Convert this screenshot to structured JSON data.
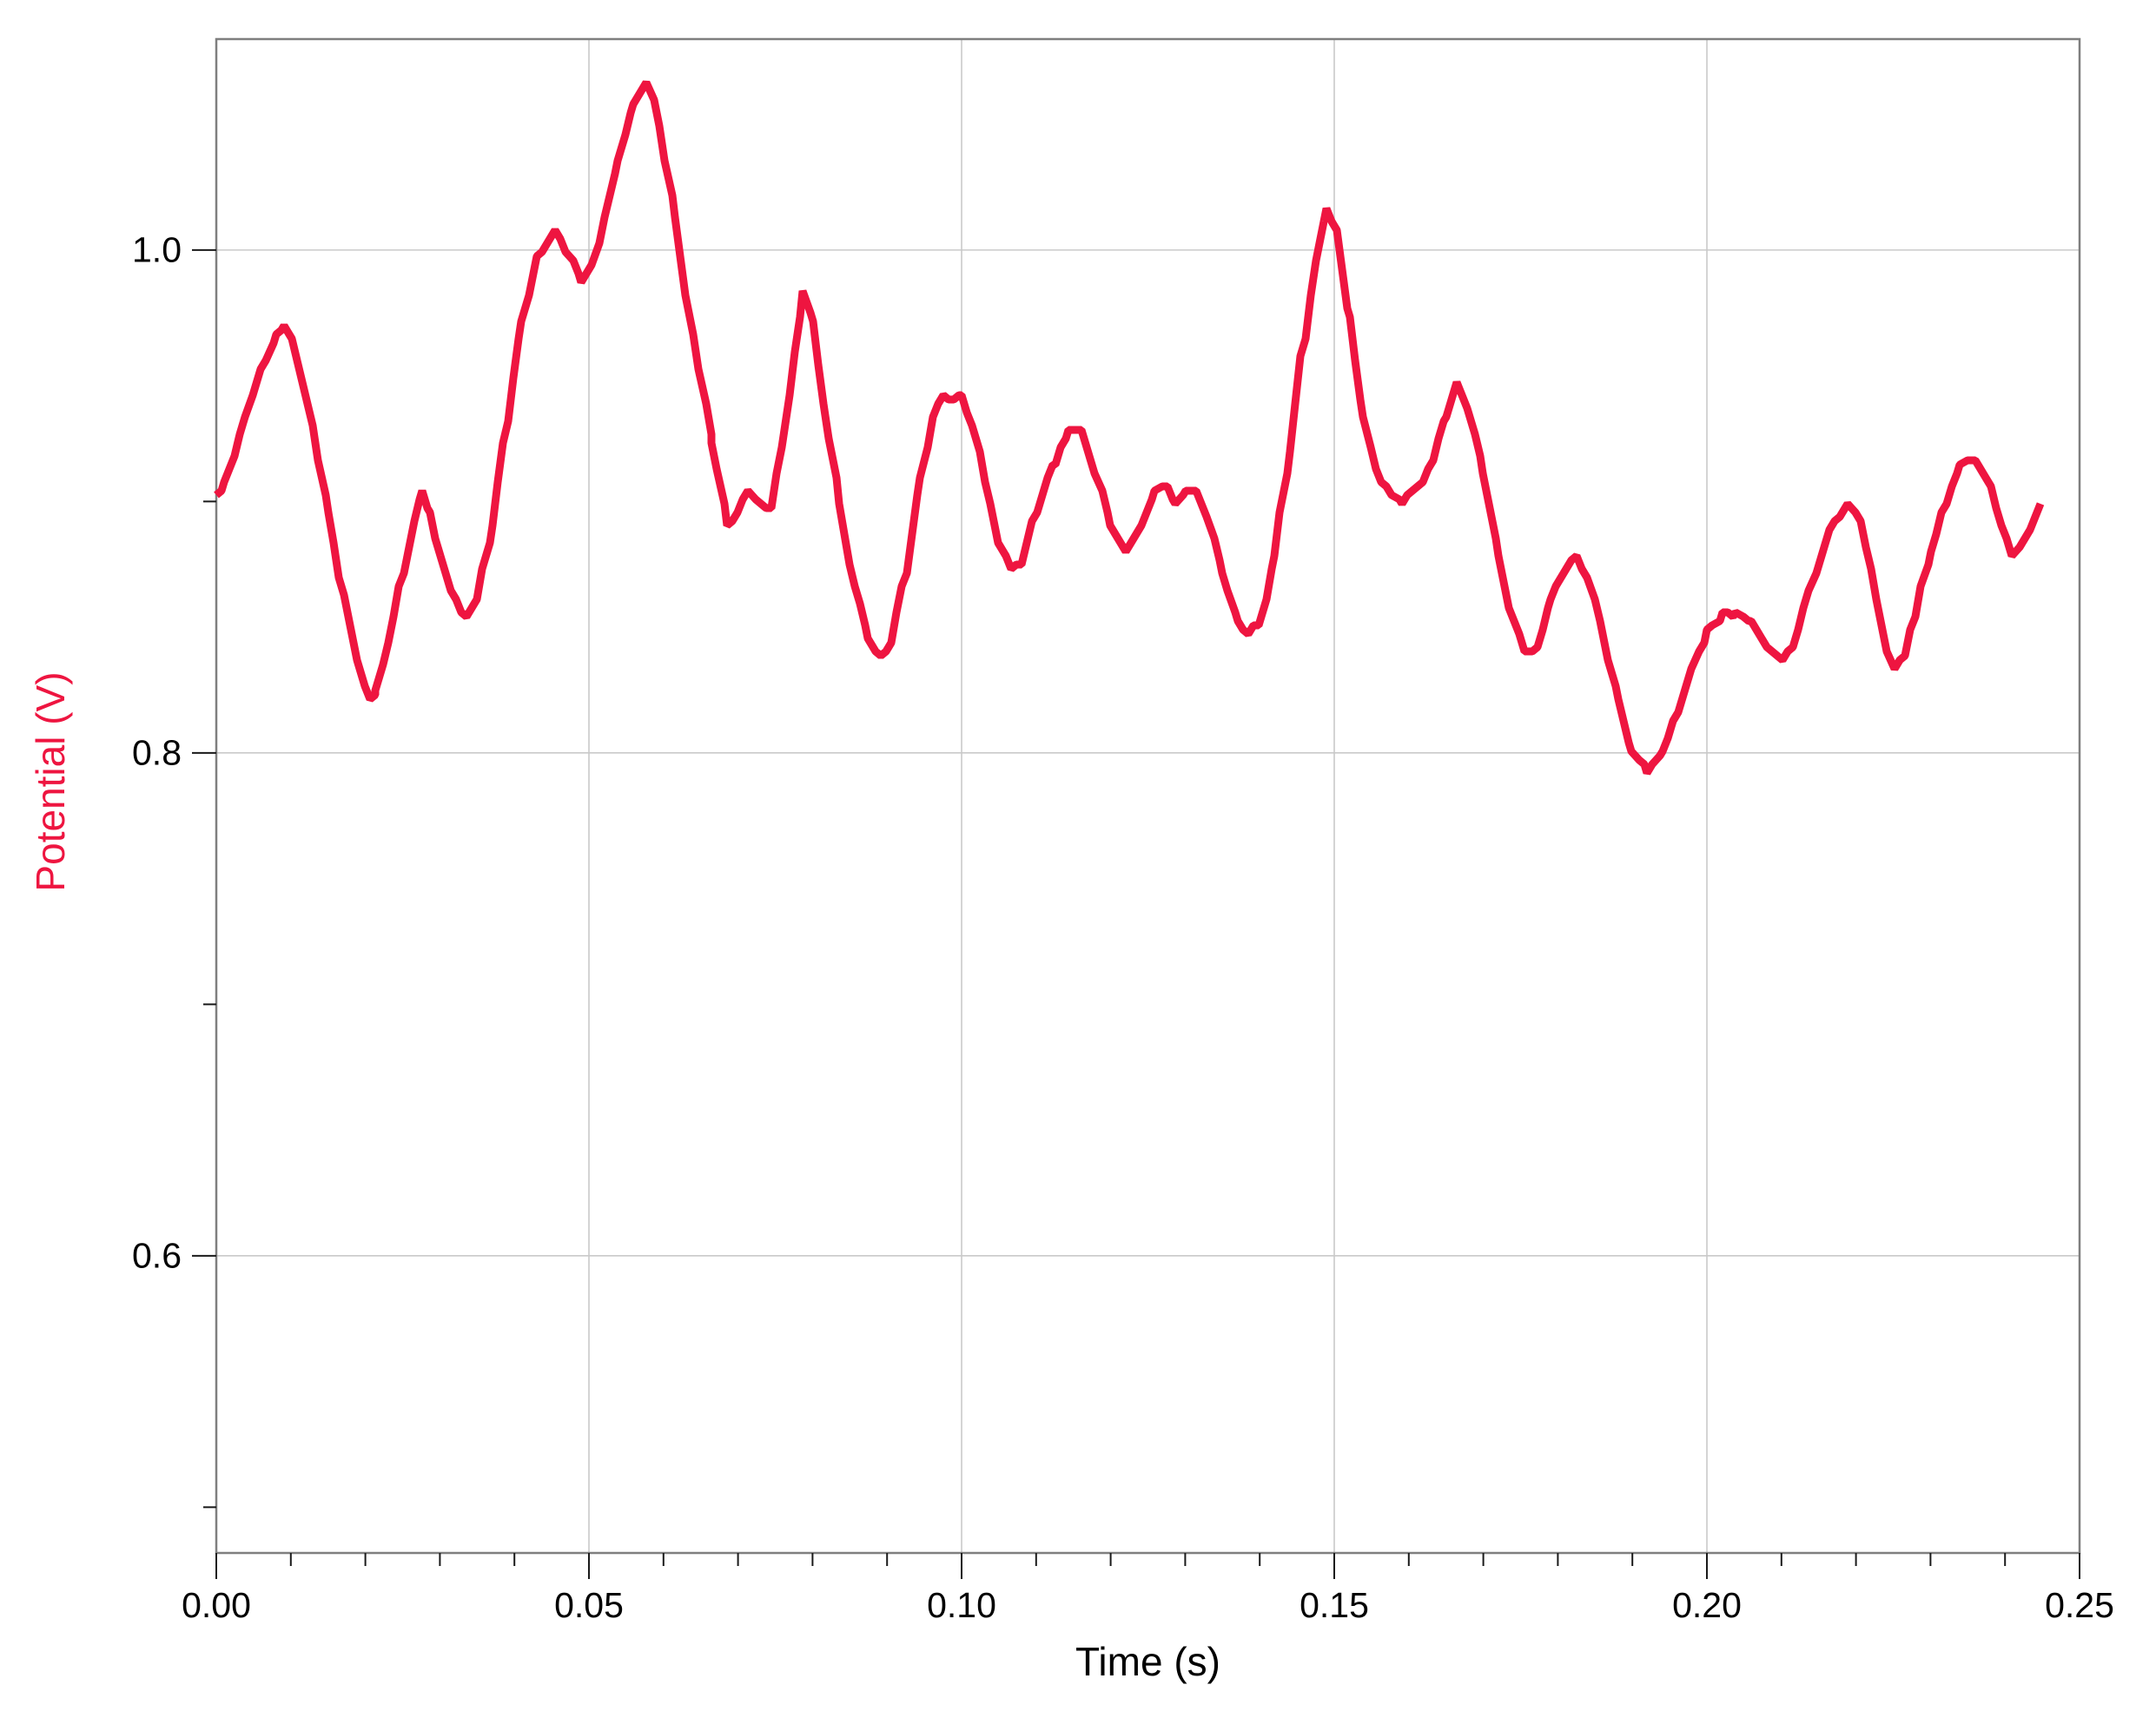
{
  "chart_data": {
    "type": "line",
    "title": "",
    "xlabel": "Time (s)",
    "ylabel": "Potential (V)",
    "xlim": [
      0,
      0.25
    ],
    "ylim": [
      0.4818,
      1.0839
    ],
    "grid": true,
    "legend_position": "none",
    "x_ticks": {
      "major": [
        0.0,
        0.05,
        0.1,
        0.15,
        0.2,
        0.25
      ],
      "labels": [
        "0.00",
        "0.05",
        "0.10",
        "0.15",
        "0.20",
        "0.25"
      ],
      "minor": [
        0.01,
        0.02,
        0.03,
        0.04,
        0.06,
        0.07,
        0.08,
        0.09,
        0.11,
        0.12,
        0.13,
        0.14,
        0.16,
        0.17,
        0.18,
        0.19,
        0.21,
        0.22,
        0.23,
        0.24
      ]
    },
    "y_ticks": {
      "major": [
        1.0,
        0.8,
        0.6
      ],
      "labels": [
        "1.0",
        "0.8",
        "0.6"
      ],
      "minor": [
        0.9,
        0.7,
        0.5
      ]
    },
    "colors": {
      "line": "#ee1540",
      "y_axis_title": "#ee1540",
      "text": "#000000",
      "grid": "#c9c9c9",
      "border": "#7f7f7f",
      "tick": "#1a1a1a"
    },
    "series": [
      {
        "name": "Potential",
        "color": "#ee1540",
        "points": [
          [
            0.0,
            0.902
          ],
          [
            0.001,
            0.906
          ],
          [
            0.0025,
            0.918
          ],
          [
            0.004,
            0.934
          ],
          [
            0.006,
            0.952
          ],
          [
            0.008,
            0.966
          ],
          [
            0.009,
            0.971
          ],
          [
            0.01,
            0.966
          ],
          [
            0.0115,
            0.948
          ],
          [
            0.013,
            0.93
          ],
          [
            0.015,
            0.896
          ],
          [
            0.017,
            0.862
          ],
          [
            0.019,
            0.836
          ],
          [
            0.0205,
            0.821
          ],
          [
            0.0215,
            0.824
          ],
          [
            0.023,
            0.844
          ],
          [
            0.025,
            0.872
          ],
          [
            0.0265,
            0.893
          ],
          [
            0.0275,
            0.904
          ],
          [
            0.0285,
            0.896
          ],
          [
            0.03,
            0.878
          ],
          [
            0.032,
            0.86
          ],
          [
            0.0335,
            0.853
          ],
          [
            0.035,
            0.862
          ],
          [
            0.037,
            0.89
          ],
          [
            0.039,
            0.932
          ],
          [
            0.041,
            0.972
          ],
          [
            0.043,
            0.996
          ],
          [
            0.0455,
            1.008
          ],
          [
            0.047,
            1.0
          ],
          [
            0.049,
            0.986
          ],
          [
            0.0505,
            0.994
          ],
          [
            0.052,
            1.012
          ],
          [
            0.054,
            1.036
          ],
          [
            0.056,
            1.058
          ],
          [
            0.0578,
            1.067
          ],
          [
            0.0595,
            1.05
          ],
          [
            0.0615,
            1.014
          ],
          [
            0.064,
            0.966
          ],
          [
            0.0665,
            0.924
          ],
          [
            0.0686,
            0.891
          ],
          [
            0.07,
            0.896
          ],
          [
            0.0715,
            0.905
          ],
          [
            0.073,
            0.899
          ],
          [
            0.0745,
            0.897
          ],
          [
            0.076,
            0.922
          ],
          [
            0.0775,
            0.96
          ],
          [
            0.0788,
            0.983
          ],
          [
            0.08,
            0.972
          ],
          [
            0.0815,
            0.94
          ],
          [
            0.0835,
            0.9
          ],
          [
            0.0855,
            0.868
          ],
          [
            0.0875,
            0.846
          ],
          [
            0.089,
            0.838
          ],
          [
            0.0905,
            0.844
          ],
          [
            0.0925,
            0.872
          ],
          [
            0.0945,
            0.91
          ],
          [
            0.096,
            0.934
          ],
          [
            0.0975,
            0.943
          ],
          [
            0.099,
            0.941
          ],
          [
            0.1,
            0.943
          ],
          [
            0.1015,
            0.93
          ],
          [
            0.103,
            0.908
          ],
          [
            0.105,
            0.884
          ],
          [
            0.1065,
            0.872
          ],
          [
            0.108,
            0.876
          ],
          [
            0.11,
            0.896
          ],
          [
            0.1125,
            0.916
          ],
          [
            0.1145,
            0.928
          ],
          [
            0.116,
            0.929
          ],
          [
            0.118,
            0.912
          ],
          [
            0.12,
            0.892
          ],
          [
            0.122,
            0.88
          ],
          [
            0.124,
            0.89
          ],
          [
            0.126,
            0.904
          ],
          [
            0.1275,
            0.906
          ],
          [
            0.1288,
            0.899
          ],
          [
            0.13,
            0.904
          ],
          [
            0.1315,
            0.905
          ],
          [
            0.133,
            0.894
          ],
          [
            0.135,
            0.872
          ],
          [
            0.137,
            0.852
          ],
          [
            0.1385,
            0.847
          ],
          [
            0.14,
            0.852
          ],
          [
            0.142,
            0.878
          ],
          [
            0.144,
            0.92
          ],
          [
            0.146,
            0.966
          ],
          [
            0.1478,
            1.0
          ],
          [
            0.149,
            1.017
          ],
          [
            0.1502,
            1.008
          ],
          [
            0.152,
            0.972
          ],
          [
            0.154,
            0.934
          ],
          [
            0.1555,
            0.913
          ],
          [
            0.157,
            0.905
          ],
          [
            0.159,
            0.899
          ],
          [
            0.1605,
            0.904
          ],
          [
            0.1618,
            0.908
          ],
          [
            0.1632,
            0.916
          ],
          [
            0.165,
            0.934
          ],
          [
            0.1665,
            0.948
          ],
          [
            0.168,
            0.938
          ],
          [
            0.17,
            0.912
          ],
          [
            0.172,
            0.88
          ],
          [
            0.174,
            0.852
          ],
          [
            0.1758,
            0.839
          ],
          [
            0.1772,
            0.843
          ],
          [
            0.179,
            0.86
          ],
          [
            0.181,
            0.874
          ],
          [
            0.1825,
            0.877
          ],
          [
            0.184,
            0.87
          ],
          [
            0.186,
            0.848
          ],
          [
            0.188,
            0.82
          ],
          [
            0.19,
            0.8
          ],
          [
            0.192,
            0.793
          ],
          [
            0.194,
            0.8
          ],
          [
            0.196,
            0.816
          ],
          [
            0.198,
            0.834
          ],
          [
            0.2,
            0.848
          ],
          [
            0.202,
            0.855
          ],
          [
            0.204,
            0.856
          ],
          [
            0.206,
            0.852
          ],
          [
            0.208,
            0.843
          ],
          [
            0.21,
            0.837
          ],
          [
            0.2115,
            0.842
          ],
          [
            0.213,
            0.856
          ],
          [
            0.215,
            0.876
          ],
          [
            0.217,
            0.892
          ],
          [
            0.219,
            0.898
          ],
          [
            0.2205,
            0.893
          ],
          [
            0.222,
            0.874
          ],
          [
            0.2235,
            0.85
          ],
          [
            0.225,
            0.834
          ],
          [
            0.2265,
            0.84
          ],
          [
            0.228,
            0.856
          ],
          [
            0.23,
            0.88
          ],
          [
            0.232,
            0.9
          ],
          [
            0.234,
            0.914
          ],
          [
            0.236,
            0.917
          ],
          [
            0.238,
            0.906
          ],
          [
            0.2395,
            0.89
          ],
          [
            0.241,
            0.88
          ],
          [
            0.2425,
            0.884
          ],
          [
            0.244,
            0.894
          ],
          [
            0.2448,
            0.899
          ]
        ]
      }
    ]
  }
}
